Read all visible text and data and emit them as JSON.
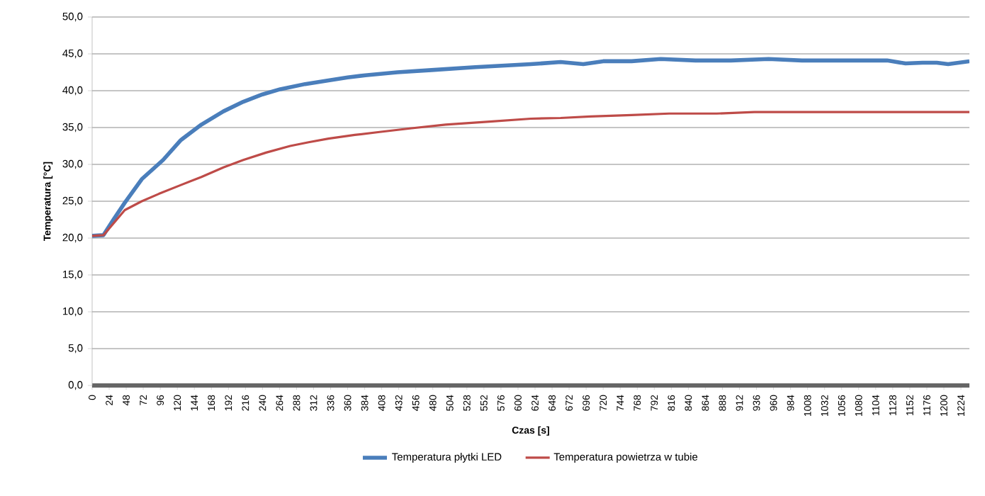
{
  "chart_data": {
    "type": "line",
    "xlabel": "Czas [s]",
    "ylabel": "Temperatura [°C]",
    "xlim": [
      0,
      1236
    ],
    "ylim": [
      0,
      50
    ],
    "xticks": [
      0,
      24,
      48,
      72,
      96,
      120,
      144,
      168,
      192,
      216,
      240,
      264,
      288,
      312,
      336,
      360,
      384,
      408,
      432,
      456,
      480,
      504,
      528,
      552,
      576,
      600,
      624,
      648,
      672,
      696,
      720,
      744,
      768,
      792,
      816,
      840,
      864,
      888,
      912,
      936,
      960,
      984,
      1008,
      1032,
      1056,
      1080,
      1104,
      1128,
      1152,
      1176,
      1200,
      1224
    ],
    "yticks": [
      {
        "value": 0,
        "label": "0,0"
      },
      {
        "value": 5,
        "label": "5,0"
      },
      {
        "value": 10,
        "label": "10,0"
      },
      {
        "value": 15,
        "label": "15,0"
      },
      {
        "value": 20,
        "label": "20,0"
      },
      {
        "value": 25,
        "label": "25,0"
      },
      {
        "value": 30,
        "label": "30,0"
      },
      {
        "value": 35,
        "label": "35,0"
      },
      {
        "value": 40,
        "label": "40,0"
      },
      {
        "value": 45,
        "label": "45,0"
      },
      {
        "value": 50,
        "label": "50,0"
      }
    ],
    "grid": "y",
    "legend": "bottom",
    "marker": "none",
    "line_style": "solid",
    "series": [
      {
        "name": "Temperatura płytki LED",
        "color": "#4a7ebb",
        "x": [
          0,
          16,
          30,
          46,
          70,
          100,
          125,
          154,
          185,
          213,
          240,
          265,
          300,
          333,
          360,
          385,
          430,
          478,
          540,
          618,
          660,
          692,
          720,
          760,
          801,
          850,
          900,
          953,
          1000,
          1060,
          1120,
          1146,
          1170,
          1190,
          1206,
          1236
        ],
        "values": [
          20.3,
          20.4,
          22.5,
          24.8,
          28,
          30.6,
          33.3,
          35.4,
          37.2,
          38.5,
          39.5,
          40.2,
          40.9,
          41.4,
          41.8,
          42.1,
          42.5,
          42.8,
          43.2,
          43.6,
          43.9,
          43.6,
          44,
          44,
          44.3,
          44.1,
          44.1,
          44.3,
          44.1,
          44.1,
          44.1,
          43.7,
          43.8,
          43.8,
          43.6,
          44
        ]
      },
      {
        "name": "Temperatura powietrza w tubie",
        "color": "#be4b48",
        "x": [
          0,
          16,
          46,
          70,
          94,
          125,
          154,
          185,
          213,
          245,
          279,
          305,
          333,
          370,
          405,
          450,
          498,
          560,
          618,
          660,
          702,
          760,
          813,
          880,
          933,
          1000,
          1100,
          1236
        ],
        "values": [
          20.3,
          20.4,
          23.8,
          25,
          26,
          27.2,
          28.3,
          29.6,
          30.6,
          31.6,
          32.5,
          33,
          33.5,
          34,
          34.4,
          34.9,
          35.4,
          35.8,
          36.2,
          36.3,
          36.5,
          36.7,
          36.9,
          36.9,
          37.1,
          37.1,
          37.1,
          37.1
        ]
      }
    ]
  }
}
